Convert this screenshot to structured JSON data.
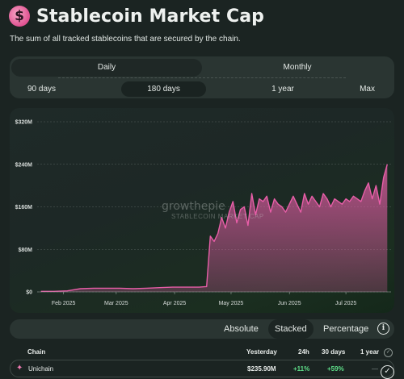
{
  "header": {
    "logo_glyph": "$",
    "title": "Stablecoin Market Cap",
    "subtitle": "The sum of all tracked stablecoins that are secured by the chain."
  },
  "controls": {
    "granularity": [
      {
        "label": "Daily",
        "active": true
      },
      {
        "label": "Monthly",
        "active": false
      }
    ],
    "ranges": [
      {
        "label": "90 days",
        "active": false
      },
      {
        "label": "180 days",
        "active": true
      },
      {
        "label": "1 year",
        "active": false
      },
      {
        "label": "Max",
        "active": false
      }
    ]
  },
  "watermark": {
    "brand": "growthepie",
    "sub": "STABLECOIN MARKET CAP"
  },
  "modes": {
    "absolute": "Absolute",
    "stacked": "Stacked",
    "percentage": "Percentage",
    "info_glyph": "i"
  },
  "table": {
    "headers": {
      "chain": "Chain",
      "yesterday": "Yesterday",
      "d24h": "24h",
      "d30": "30 days",
      "y1": "1 year"
    },
    "rows": [
      {
        "chain": "Unichain",
        "yesterday": "$235.90M",
        "d24h": "+11%",
        "d30": "+59%",
        "y1": "—"
      }
    ]
  },
  "colors": {
    "series": "#e85ea8",
    "positive": "#5fe08a"
  },
  "chart_data": {
    "type": "area",
    "series_color": "#e85ea8",
    "x_dates": [
      "2025-01-20",
      "2025-01-27",
      "2025-02-03",
      "2025-02-10",
      "2025-02-17",
      "2025-02-24",
      "2025-03-03",
      "2025-03-10",
      "2025-03-17",
      "2025-03-24",
      "2025-03-31",
      "2025-04-07",
      "2025-04-14",
      "2025-04-18",
      "2025-04-20",
      "2025-04-22",
      "2025-04-24",
      "2025-04-26",
      "2025-04-28",
      "2025-04-30",
      "2025-05-02",
      "2025-05-04",
      "2025-05-06",
      "2025-05-08",
      "2025-05-10",
      "2025-05-12",
      "2025-05-14",
      "2025-05-16",
      "2025-05-18",
      "2025-05-20",
      "2025-05-22",
      "2025-05-24",
      "2025-05-26",
      "2025-05-28",
      "2025-05-30",
      "2025-06-01",
      "2025-06-03",
      "2025-06-05",
      "2025-06-07",
      "2025-06-09",
      "2025-06-11",
      "2025-06-13",
      "2025-06-15",
      "2025-06-17",
      "2025-06-19",
      "2025-06-21",
      "2025-06-23",
      "2025-06-25",
      "2025-06-27",
      "2025-06-29",
      "2025-07-01",
      "2025-07-03",
      "2025-07-05",
      "2025-07-07",
      "2025-07-09",
      "2025-07-11",
      "2025-07-13",
      "2025-07-15",
      "2025-07-17",
      "2025-07-19",
      "2025-07-21",
      "2025-07-23"
    ],
    "y_values_musd": [
      1,
      1,
      2,
      6,
      7,
      7,
      7,
      6,
      7,
      8,
      9,
      9,
      9,
      10,
      105,
      95,
      110,
      140,
      120,
      150,
      170,
      130,
      155,
      160,
      125,
      185,
      145,
      175,
      170,
      180,
      150,
      175,
      165,
      160,
      150,
      165,
      180,
      165,
      150,
      185,
      165,
      180,
      170,
      160,
      185,
      175,
      160,
      175,
      170,
      165,
      175,
      170,
      180,
      175,
      170,
      190,
      205,
      175,
      200,
      165,
      215,
      240
    ],
    "x_ticks": [
      "Feb 2025",
      "Mar 2025",
      "Apr 2025",
      "May 2025",
      "Jun 2025",
      "Jul 2025"
    ],
    "x_tick_dates": [
      "2025-02-01",
      "2025-03-01",
      "2025-04-01",
      "2025-05-01",
      "2025-06-01",
      "2025-07-01"
    ],
    "y_ticks": [
      "$0",
      "$80M",
      "$160M",
      "$240M",
      "$320M"
    ],
    "y_tick_values": [
      0,
      80,
      160,
      240,
      320
    ],
    "ylim": [
      0,
      320
    ],
    "xlim": [
      "2025-01-18",
      "2025-07-25"
    ],
    "grid": true
  }
}
